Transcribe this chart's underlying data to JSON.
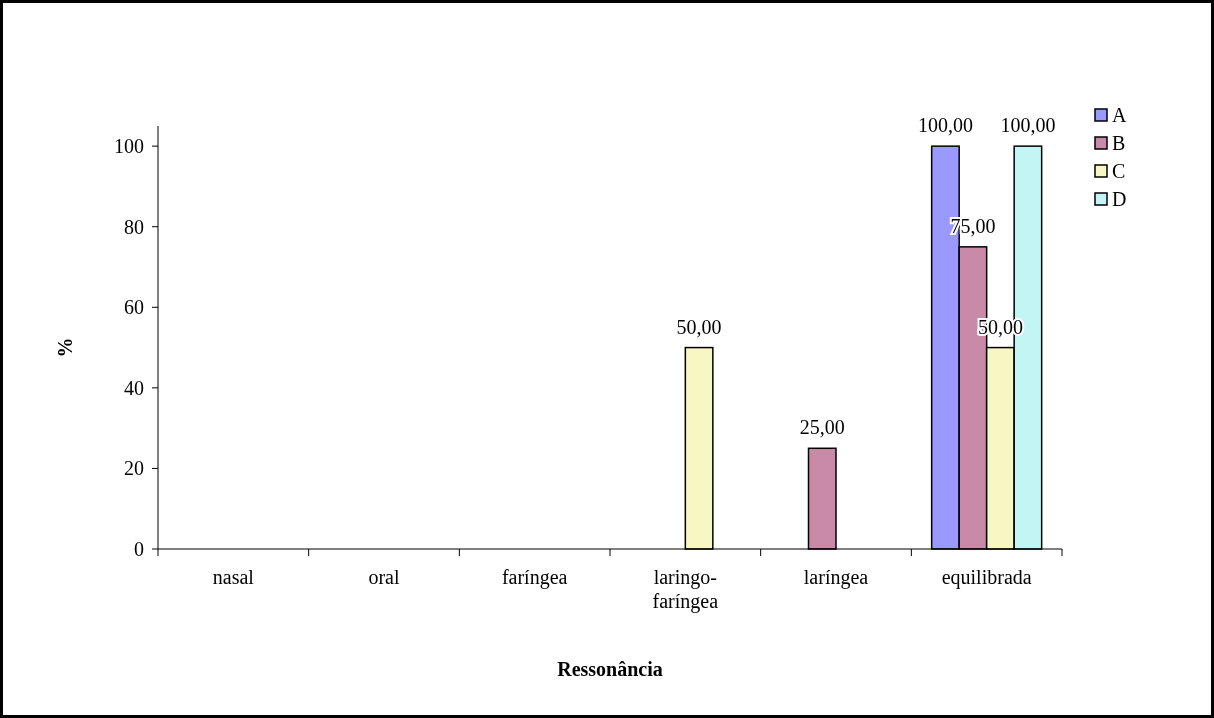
{
  "chart_data": {
    "type": "bar",
    "xlabel": "Ressonância",
    "ylabel": "%",
    "categories": [
      "nasal",
      "oral",
      "faríngea",
      "laringo-faríngea",
      "laríngea",
      "equilibrada"
    ],
    "series": [
      {
        "name": "A",
        "color": "#9999ff",
        "values": [
          0,
          0,
          0,
          0,
          0,
          100
        ],
        "value_labels": [
          null,
          null,
          null,
          null,
          null,
          "100,00"
        ]
      },
      {
        "name": "B",
        "color": "#c98aa8",
        "values": [
          0,
          0,
          0,
          0,
          25,
          75
        ],
        "value_labels": [
          null,
          null,
          null,
          null,
          "25,00",
          "75,00"
        ]
      },
      {
        "name": "C",
        "color": "#f7f7c4",
        "values": [
          0,
          0,
          0,
          50,
          0,
          50
        ],
        "value_labels": [
          null,
          null,
          null,
          "50,00",
          null,
          "50,00"
        ]
      },
      {
        "name": "D",
        "color": "#c4f5f5",
        "values": [
          0,
          0,
          0,
          0,
          0,
          100
        ],
        "value_labels": [
          null,
          null,
          null,
          null,
          null,
          "100,00"
        ]
      }
    ],
    "ylim": [
      0,
      105
    ],
    "yticks": [
      0,
      20,
      40,
      60,
      80,
      100
    ],
    "grid": false,
    "legend": "top right"
  }
}
